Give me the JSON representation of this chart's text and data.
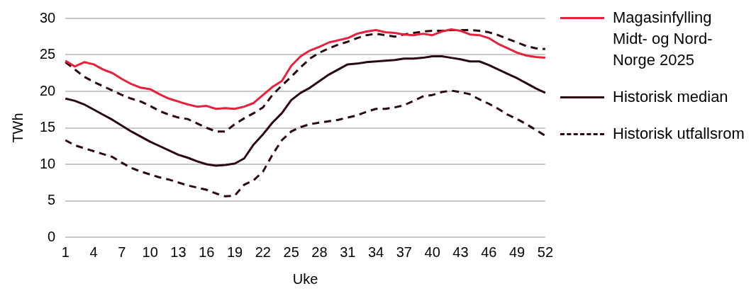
{
  "chart_data": {
    "type": "line",
    "xlabel": "Uke",
    "ylabel": "TWh",
    "categories": [
      "1",
      null,
      null,
      "4",
      null,
      null,
      "7",
      null,
      null,
      "10",
      null,
      null,
      "13",
      null,
      null,
      "16",
      null,
      null,
      "19",
      null,
      null,
      "22",
      null,
      null,
      "25",
      null,
      null,
      "28",
      null,
      null,
      "31",
      null,
      null,
      "34",
      null,
      null,
      "37",
      null,
      null,
      "40",
      null,
      null,
      "43",
      null,
      null,
      "46",
      null,
      null,
      "49",
      null,
      null,
      "52"
    ],
    "ylim": [
      0,
      30
    ],
    "yticks": [
      0,
      5,
      10,
      15,
      20,
      25,
      30
    ],
    "grid": "y",
    "legend": "right",
    "marker": "none",
    "series": [
      {
        "name": "Magasinfylling Midt- og Nord-Norge 2025",
        "color": "#e8203a",
        "line_style": "solid",
        "values": [
          24.2,
          23.4,
          24.0,
          23.7,
          23.0,
          22.5,
          21.7,
          21.0,
          20.5,
          20.3,
          19.6,
          19.0,
          18.6,
          18.2,
          17.9,
          18.0,
          17.6,
          17.7,
          17.6,
          17.9,
          18.4,
          19.5,
          20.6,
          21.4,
          23.5,
          24.8,
          25.6,
          26.1,
          26.7,
          27.0,
          27.3,
          27.9,
          28.2,
          28.4,
          28.1,
          28.0,
          27.8,
          27.7,
          27.9,
          27.7,
          28.2,
          28.5,
          28.3,
          27.8,
          27.7,
          27.3,
          26.5,
          25.9,
          25.3,
          24.9,
          24.7,
          24.6
        ]
      },
      {
        "name": "Historisk median",
        "color": "#2b0a0f",
        "line_style": "solid",
        "values": [
          19.0,
          18.7,
          18.2,
          17.5,
          16.8,
          16.1,
          15.3,
          14.5,
          13.8,
          13.1,
          12.5,
          11.9,
          11.3,
          10.9,
          10.4,
          10.0,
          9.8,
          9.9,
          10.1,
          10.8,
          12.7,
          14.1,
          15.7,
          17.0,
          18.8,
          19.8,
          20.5,
          21.4,
          22.3,
          23.0,
          23.7,
          23.8,
          24.0,
          24.1,
          24.2,
          24.3,
          24.5,
          24.5,
          24.6,
          24.8,
          24.8,
          24.6,
          24.4,
          24.1,
          24.1,
          23.6,
          23.0,
          22.4,
          21.8,
          21.1,
          20.4,
          19.8
        ]
      },
      {
        "name": "Historisk utfallsrom",
        "color": "#2b0a0f",
        "line_style": "dashed",
        "values": [
          24.0,
          23.0,
          22.0,
          21.3,
          20.7,
          20.1,
          19.5,
          19.0,
          18.6,
          18.0,
          17.3,
          16.8,
          16.4,
          16.2,
          15.6,
          15.0,
          14.5,
          14.5,
          15.5,
          16.3,
          17.0,
          17.8,
          19.5,
          20.8,
          22.0,
          23.3,
          24.5,
          25.3,
          25.9,
          26.4,
          26.8,
          27.3,
          27.7,
          27.9,
          27.7,
          27.5,
          27.8,
          28.0,
          28.2,
          28.3,
          28.3,
          28.4,
          28.4,
          28.4,
          28.3,
          28.1,
          27.7,
          27.2,
          26.7,
          26.2,
          25.9,
          25.8
        ]
      },
      {
        "color": "#2b0a0f",
        "line_style": "dashed",
        "values": [
          13.3,
          12.6,
          12.2,
          11.8,
          11.4,
          11.0,
          10.2,
          9.5,
          9.0,
          8.6,
          8.2,
          7.9,
          7.5,
          7.1,
          6.8,
          6.5,
          6.0,
          5.6,
          5.7,
          7.2,
          7.8,
          9.0,
          11.3,
          13.3,
          14.5,
          15.1,
          15.5,
          15.7,
          15.9,
          16.1,
          16.4,
          16.7,
          17.2,
          17.6,
          17.6,
          17.8,
          18.1,
          18.7,
          19.3,
          19.5,
          19.9,
          20.1,
          19.9,
          19.6,
          18.9,
          18.3,
          17.6,
          16.8,
          16.2,
          15.5,
          14.7,
          13.9
        ]
      }
    ]
  }
}
